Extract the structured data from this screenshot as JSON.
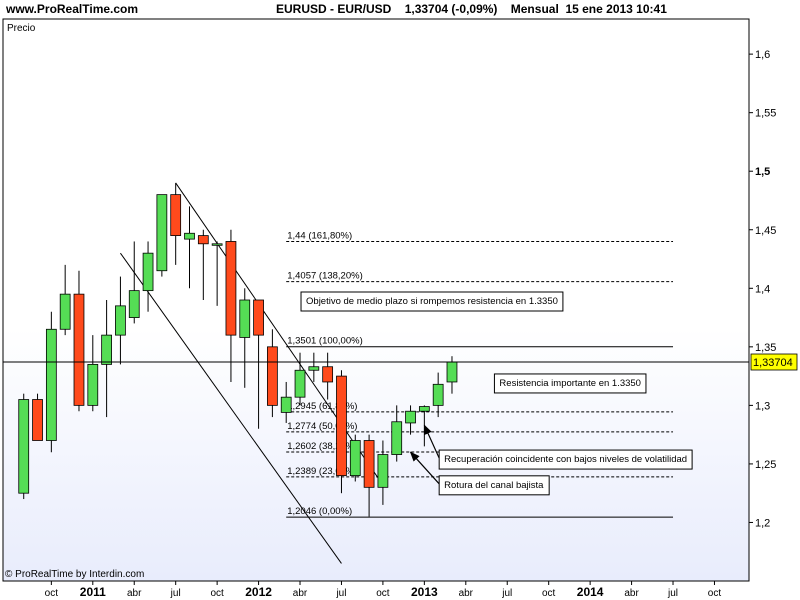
{
  "header": {
    "site": "www.ProRealTime.com",
    "symbol": "EURUSD - EUR/USD",
    "price_change": "1,33704 (-0,09%)",
    "period": "Mensual",
    "datetime": "15 ene 2013 10:41"
  },
  "footer": {
    "credit": "© ProRealTime by Interdin.com"
  },
  "colors": {
    "up": "#55dd55",
    "down": "#ff4a1c",
    "background_gradient": "#e8ecfc"
  },
  "chart_data": {
    "type": "candlestick",
    "panel_label": "Precio",
    "current_price": 1.33704,
    "current_price_label": "1,33704",
    "ylim": [
      1.15,
      1.63
    ],
    "y_ticks": [
      {
        "value": 1.2,
        "label": "1,2"
      },
      {
        "value": 1.25,
        "label": "1,25"
      },
      {
        "value": 1.3,
        "label": "1,3"
      },
      {
        "value": 1.35,
        "label": "1,35"
      },
      {
        "value": 1.4,
        "label": "1,4"
      },
      {
        "value": 1.45,
        "label": "1,45"
      },
      {
        "value": 1.5,
        "label": "1,5",
        "bold": true
      },
      {
        "value": 1.55,
        "label": "1,55"
      },
      {
        "value": 1.6,
        "label": "1,6"
      }
    ],
    "x_range": [
      "2010-07",
      "2014-12"
    ],
    "x_ticks": [
      {
        "month": "2010-10",
        "label": "oct"
      },
      {
        "month": "2011-01",
        "label": "2011",
        "bold": true
      },
      {
        "month": "2011-04",
        "label": "abr"
      },
      {
        "month": "2011-07",
        "label": "jul"
      },
      {
        "month": "2011-10",
        "label": "oct"
      },
      {
        "month": "2012-01",
        "label": "2012",
        "bold": true
      },
      {
        "month": "2012-04",
        "label": "abr"
      },
      {
        "month": "2012-07",
        "label": "jul"
      },
      {
        "month": "2012-10",
        "label": "oct"
      },
      {
        "month": "2013-01",
        "label": "2013",
        "bold": true
      },
      {
        "month": "2013-04",
        "label": "abr"
      },
      {
        "month": "2013-07",
        "label": "jul"
      },
      {
        "month": "2013-10",
        "label": "oct"
      },
      {
        "month": "2014-01",
        "label": "2014",
        "bold": true
      },
      {
        "month": "2014-04",
        "label": "abr"
      },
      {
        "month": "2014-07",
        "label": "jul"
      },
      {
        "month": "2014-10",
        "label": "oct"
      }
    ],
    "candles": [
      {
        "month": "2010-08",
        "open": 1.225,
        "high": 1.31,
        "low": 1.22,
        "close": 1.305
      },
      {
        "month": "2010-09",
        "open": 1.305,
        "high": 1.31,
        "low": 1.27,
        "close": 1.27
      },
      {
        "month": "2010-10",
        "open": 1.27,
        "high": 1.38,
        "low": 1.26,
        "close": 1.365
      },
      {
        "month": "2010-11",
        "open": 1.365,
        "high": 1.42,
        "low": 1.36,
        "close": 1.395
      },
      {
        "month": "2010-12",
        "open": 1.395,
        "high": 1.415,
        "low": 1.295,
        "close": 1.3
      },
      {
        "month": "2011-01",
        "open": 1.3,
        "high": 1.36,
        "low": 1.295,
        "close": 1.335
      },
      {
        "month": "2011-02",
        "open": 1.335,
        "high": 1.39,
        "low": 1.29,
        "close": 1.36
      },
      {
        "month": "2011-03",
        "open": 1.36,
        "high": 1.41,
        "low": 1.335,
        "close": 1.385
      },
      {
        "month": "2011-04",
        "open": 1.375,
        "high": 1.44,
        "low": 1.37,
        "close": 1.398
      },
      {
        "month": "2011-05",
        "open": 1.398,
        "high": 1.44,
        "low": 1.38,
        "close": 1.43
      },
      {
        "month": "2011-06",
        "open": 1.415,
        "high": 1.48,
        "low": 1.41,
        "close": 1.48
      },
      {
        "month": "2011-07",
        "open": 1.48,
        "high": 1.49,
        "low": 1.42,
        "close": 1.445
      },
      {
        "month": "2011-08",
        "open": 1.442,
        "high": 1.47,
        "low": 1.4,
        "close": 1.447
      },
      {
        "month": "2011-09",
        "open": 1.445,
        "high": 1.45,
        "low": 1.39,
        "close": 1.438
      },
      {
        "month": "2011-10",
        "open": 1.438,
        "high": 1.44,
        "low": 1.385,
        "close": 1.438
      },
      {
        "month": "2011-11",
        "open": 1.44,
        "high": 1.45,
        "low": 1.32,
        "close": 1.36
      },
      {
        "month": "2011-12",
        "open": 1.358,
        "high": 1.4,
        "low": 1.315,
        "close": 1.39
      },
      {
        "month": "2012-01",
        "open": 1.39,
        "high": 1.39,
        "low": 1.28,
        "close": 1.36
      },
      {
        "month": "2012-02",
        "open": 1.35,
        "high": 1.365,
        "low": 1.29,
        "close": 1.3
      },
      {
        "month": "2012-03",
        "open": 1.294,
        "high": 1.32,
        "low": 1.285,
        "close": 1.307
      },
      {
        "month": "2012-04",
        "open": 1.307,
        "high": 1.345,
        "low": 1.3,
        "close": 1.33
      },
      {
        "month": "2012-05",
        "open": 1.33,
        "high": 1.345,
        "low": 1.32,
        "close": 1.333
      },
      {
        "month": "2012-06",
        "open": 1.333,
        "high": 1.345,
        "low": 1.305,
        "close": 1.32
      },
      {
        "month": "2012-07",
        "open": 1.325,
        "high": 1.33,
        "low": 1.225,
        "close": 1.24
      },
      {
        "month": "2012-08",
        "open": 1.24,
        "high": 1.275,
        "low": 1.235,
        "close": 1.27
      },
      {
        "month": "2012-09",
        "open": 1.27,
        "high": 1.275,
        "low": 1.205,
        "close": 1.23
      },
      {
        "month": "2012-10",
        "open": 1.23,
        "high": 1.27,
        "low": 1.215,
        "close": 1.258
      },
      {
        "month": "2012-11",
        "open": 1.258,
        "high": 1.3,
        "low": 1.252,
        "close": 1.286
      },
      {
        "month": "2012-12",
        "open": 1.285,
        "high": 1.3,
        "low": 1.275,
        "close": 1.295
      },
      {
        "month": "2013-01",
        "open": 1.295,
        "high": 1.3,
        "low": 1.265,
        "close": 1.299
      },
      {
        "month": "2013-02",
        "open": 1.3,
        "high": 1.328,
        "low": 1.29,
        "close": 1.318
      },
      {
        "month": "2013-03",
        "open": 1.32,
        "high": 1.342,
        "low": 1.31,
        "close": 1.337
      }
    ],
    "fibonacci_levels": [
      {
        "value": 1.44,
        "label": "1,44 (161,80%)",
        "style": "dashed"
      },
      {
        "value": 1.4057,
        "label": "1,4057 (138,20%)",
        "style": "dashed"
      },
      {
        "value": 1.3501,
        "label": "1,3501 (100,00%)",
        "style": "solid"
      },
      {
        "value": 1.2945,
        "label": "1,2945 (61,80%)",
        "style": "dashed"
      },
      {
        "value": 1.2774,
        "label": "1,2774 (50,00%)",
        "style": "dashed"
      },
      {
        "value": 1.2602,
        "label": "1,2602 (38,20%)",
        "style": "dashed"
      },
      {
        "value": 1.2389,
        "label": "1,2389 (23,60%)",
        "style": "dashed"
      },
      {
        "value": 1.2046,
        "label": "1,2046 (0,00%)",
        "style": "solid"
      }
    ],
    "fib_x_range": [
      "2012-03",
      "2014-07"
    ],
    "channel_lines": [
      {
        "from": {
          "month": "2011-07",
          "value": 1.49
        },
        "to": {
          "month": "2012-10",
          "value": 1.232
        }
      },
      {
        "from": {
          "month": "2011-03",
          "value": 1.43
        },
        "to": {
          "month": "2012-07",
          "value": 1.165
        }
      }
    ],
    "annotations": [
      {
        "id": "objetivo",
        "text": "Objetivo de medio plazo si rompemos resistencia en 1.3350",
        "month": "2012-04",
        "value": 1.39
      },
      {
        "id": "resistencia",
        "text": "Resistencia importante en 1.3350",
        "month": "2013-06",
        "value": 1.32
      },
      {
        "id": "recuperacion",
        "text": "Recuperación coincidente con bajos niveles de volatilidad",
        "month": "2013-02",
        "value": 1.255,
        "arrow_to": {
          "month": "2013-01",
          "value": 1.283
        }
      },
      {
        "id": "rotura",
        "text": "Rotura del canal bajista",
        "month": "2013-02",
        "value": 1.233,
        "arrow_to": {
          "month": "2012-12",
          "value": 1.26
        }
      }
    ]
  }
}
